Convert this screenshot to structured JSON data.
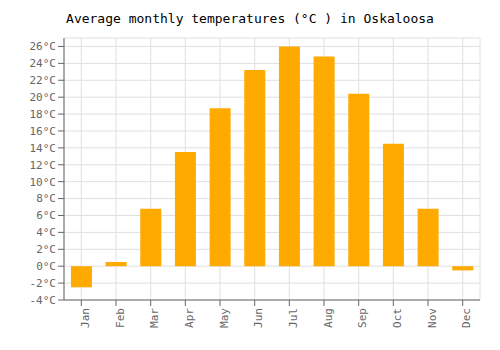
{
  "chart_data": {
    "type": "bar",
    "title": "Average monthly temperatures (°C ) in Oskaloosa",
    "categories": [
      "Jan",
      "Feb",
      "Mar",
      "Apr",
      "May",
      "Jun",
      "Jul",
      "Aug",
      "Sep",
      "Oct",
      "Nov",
      "Dec"
    ],
    "values": [
      -2.5,
      0.5,
      6.8,
      13.5,
      18.7,
      23.2,
      26.0,
      24.8,
      20.4,
      14.5,
      6.8,
      -0.5
    ],
    "color": "#FFAA00",
    "ylim": [
      -4,
      27
    ],
    "yticks": [
      {
        "value": -4,
        "label": "-4°C"
      },
      {
        "value": -2,
        "label": "-2°C"
      },
      {
        "value": 0,
        "label": "0°C"
      },
      {
        "value": 2,
        "label": "2°C"
      },
      {
        "value": 4,
        "label": "4°C"
      },
      {
        "value": 6,
        "label": "6°C"
      },
      {
        "value": 8,
        "label": "8°C"
      },
      {
        "value": 10,
        "label": "10°C"
      },
      {
        "value": 12,
        "label": "12°C"
      },
      {
        "value": 14,
        "label": "14°C"
      },
      {
        "value": 16,
        "label": "16°C"
      },
      {
        "value": 18,
        "label": "18°C"
      },
      {
        "value": 20,
        "label": "20°C"
      },
      {
        "value": 22,
        "label": "22°C"
      },
      {
        "value": 24,
        "label": "24°C"
      },
      {
        "value": 26,
        "label": "26°C"
      }
    ],
    "grid": true
  }
}
